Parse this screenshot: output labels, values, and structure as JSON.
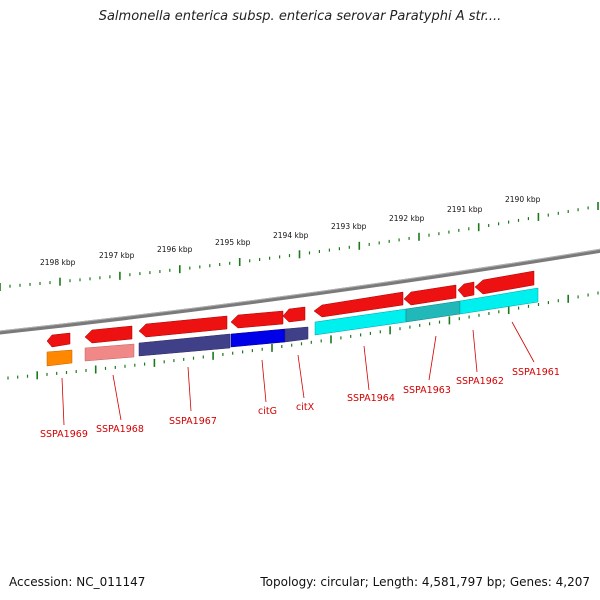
{
  "title": "Salmonella enterica subsp. enterica serovar Paratyphi A str....",
  "footer": {
    "accession": "Accession: NC_011147",
    "topology": "Topology: circular; Length: 4,581,797 bp; Genes: 4,207"
  },
  "colors": {
    "backbone": "#7a7a7a",
    "ticks": "#1a7a1a",
    "gene_arrow": "#ee1111",
    "labels": "#d40000",
    "cog_cyan": "#00f0f0",
    "cog_teal": "#20b8b8",
    "cog_blue": "#0000e8",
    "cog_navy": "#404088",
    "cog_pink": "#f08888",
    "cog_orange": "#ff8800"
  },
  "kbp_ticks": [
    "2198 kbp",
    "2197 kbp",
    "2196 kbp",
    "2195 kbp",
    "2194 kbp",
    "2193 kbp",
    "2192 kbp",
    "2191 kbp",
    "2190 kbp"
  ],
  "genes": [
    {
      "name": "SSPA1969",
      "cog_color": "cog_orange"
    },
    {
      "name": "SSPA1968",
      "cog_color": "cog_pink"
    },
    {
      "name": "SSPA1967",
      "cog_color": "cog_navy"
    },
    {
      "name": "citG",
      "cog_color": "cog_blue"
    },
    {
      "name": "citX",
      "cog_color": "cog_navy"
    },
    {
      "name": "SSPA1964",
      "cog_color": "cog_cyan"
    },
    {
      "name": "SSPA1963",
      "cog_color": "cog_teal"
    },
    {
      "name": "SSPA1962",
      "cog_color": "cog_cyan"
    },
    {
      "name": "SSPA1961",
      "cog_color": "cog_cyan"
    }
  ]
}
